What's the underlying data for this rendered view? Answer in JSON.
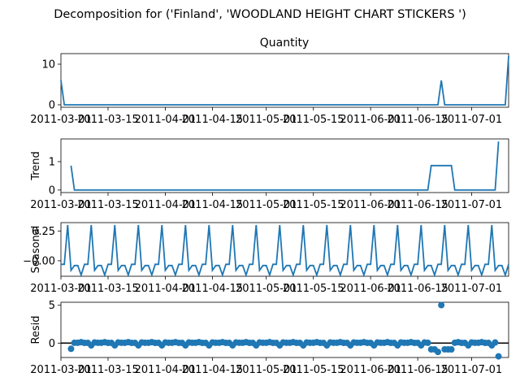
{
  "figure": {
    "suptitle": "Decomposition for ('Finland', 'WOODLAND  HEIGHT CHART STICKERS ')"
  },
  "chart_data": {
    "type": "line",
    "x_start": "2011-03-01",
    "x_end": "2011-07-12",
    "x_tick_labels": [
      "2011-03-01",
      "2011-03-15",
      "2011-04-01",
      "2011-04-15",
      "2011-05-01",
      "2011-05-15",
      "2011-06-01",
      "2011-06-15",
      "2011-07-01"
    ],
    "color": "#1f77b4",
    "panels": [
      {
        "key": "observed",
        "kind": "line",
        "title": "Quantity",
        "ylabel": "",
        "ylim": [
          -0.6,
          12.6
        ],
        "yticks": [
          0,
          10
        ],
        "note": "daily series; 0 everywhere except spikes",
        "default": 0,
        "points": [
          {
            "x": "2011-03-01",
            "y": 6
          },
          {
            "x": "2011-03-02",
            "y": 0
          },
          {
            "x": "2011-06-21",
            "y": 0
          },
          {
            "x": "2011-06-22",
            "y": 6
          },
          {
            "x": "2011-06-23",
            "y": 0
          },
          {
            "x": "2011-07-11",
            "y": 0
          },
          {
            "x": "2011-07-12",
            "y": 12
          }
        ]
      },
      {
        "key": "trend",
        "kind": "line",
        "title": "",
        "ylabel": "Trend",
        "ylim": [
          -0.09,
          1.8
        ],
        "yticks": [
          0,
          1
        ],
        "points": [
          {
            "x": "2011-03-04",
            "y": 0.86
          },
          {
            "x": "2011-03-05",
            "y": 0
          },
          {
            "x": "2011-06-18",
            "y": 0
          },
          {
            "x": "2011-06-19",
            "y": 0.86
          },
          {
            "x": "2011-06-25",
            "y": 0.86
          },
          {
            "x": "2011-06-26",
            "y": 0
          },
          {
            "x": "2011-07-08",
            "y": 0
          },
          {
            "x": "2011-07-09",
            "y": 1.71
          }
        ]
      },
      {
        "key": "seasonal",
        "kind": "line",
        "title": "",
        "ylabel": "Seasonal",
        "ylim": [
          -0.13,
          0.32
        ],
        "yticks": [
          -0.0,
          0.25
        ],
        "period": 7,
        "pattern": [
          -0.03,
          -0.03,
          0.3,
          -0.08,
          -0.04,
          -0.04,
          -0.12
        ],
        "pattern_start": "2011-03-01"
      },
      {
        "key": "resid",
        "kind": "scatter",
        "title": "",
        "ylabel": "Resid",
        "ylim": [
          -1.9,
          5.4
        ],
        "yticks": [
          0,
          5
        ],
        "zero_line": true,
        "seasonal_pattern": [
          -0.03,
          -0.03,
          0.3,
          -0.08,
          -0.04,
          -0.04,
          -0.12
        ],
        "note": "resid = observed - trend - seasonal where trend defined",
        "points": [
          {
            "x": "2011-03-04",
            "y": -0.75
          },
          {
            "x": "2011-06-19",
            "y": -0.83
          },
          {
            "x": "2011-06-20",
            "y": -0.82
          },
          {
            "x": "2011-06-21",
            "y": -1.16
          },
          {
            "x": "2011-06-22",
            "y": 5.02
          },
          {
            "x": "2011-06-23",
            "y": -0.82
          },
          {
            "x": "2011-06-24",
            "y": -0.83
          },
          {
            "x": "2011-06-25",
            "y": -0.83
          },
          {
            "x": "2011-07-09",
            "y": -1.75
          }
        ]
      }
    ]
  }
}
